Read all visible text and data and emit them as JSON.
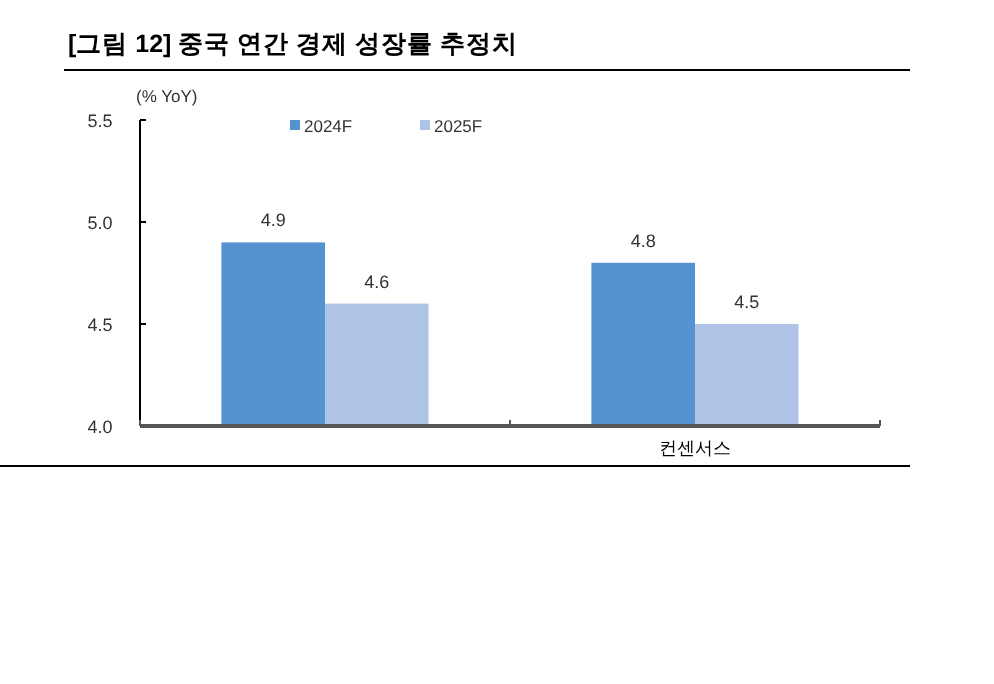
{
  "chart_data": {
    "type": "bar",
    "title": "[그림 12] 중국 연간 경제 성장률 추정치",
    "ylabel": "(% YoY)",
    "categories": [
      null,
      "컨센서스"
    ],
    "series": [
      {
        "name": "2024F",
        "color": "#5592d0",
        "values": [
          4.9,
          4.8
        ]
      },
      {
        "name": "2025F",
        "color": "#aec3e6",
        "values": [
          4.6,
          4.5
        ]
      }
    ],
    "ylim": [
      4.0,
      5.5
    ],
    "yticks": [
      {
        "value": 4.0,
        "label": "4.0"
      },
      {
        "value": 4.5,
        "label": "4.5"
      },
      {
        "value": 5.0,
        "label": "5.0"
      },
      {
        "value": 5.5,
        "label": "5.5"
      }
    ],
    "data_labels": true,
    "legend": "top",
    "grid": false
  }
}
